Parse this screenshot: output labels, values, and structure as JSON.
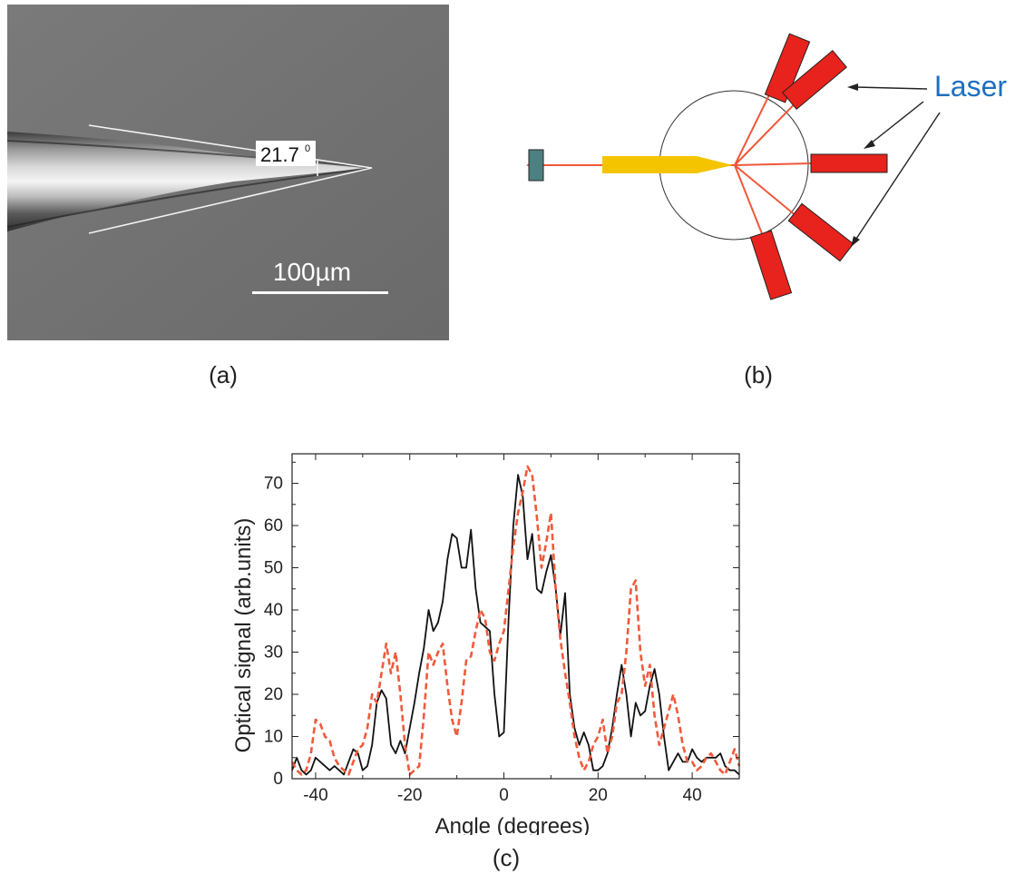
{
  "captions": {
    "a": "(a)",
    "b": "(b)",
    "c": "(c)"
  },
  "panel_a": {
    "angle_label": "21.7",
    "angle_unit": "0",
    "scale_bar_label": "100µm"
  },
  "panel_b": {
    "laser_label": "Laser",
    "colors": {
      "laser": "#e8221c",
      "tip": "#f5c400",
      "detector": "#4d8080",
      "beam": "#f0573a",
      "label": "#1f6fbf"
    }
  },
  "chart_data": {
    "type": "line",
    "xlabel": "Angle (degrees)",
    "ylabel": "Optical signal (arb.units)",
    "xlim": [
      -45,
      50
    ],
    "ylim": [
      0,
      77
    ],
    "xticks": [
      -40,
      -20,
      0,
      20,
      40
    ],
    "yticks": [
      0,
      10,
      20,
      30,
      40,
      50,
      60,
      70
    ],
    "series": [
      {
        "style": "solid",
        "color": "#111111",
        "points": [
          [
            -45,
            2
          ],
          [
            -44,
            5
          ],
          [
            -43,
            2
          ],
          [
            -42,
            1
          ],
          [
            -41,
            2
          ],
          [
            -40,
            5
          ],
          [
            -39,
            4
          ],
          [
            -38,
            3
          ],
          [
            -37,
            2
          ],
          [
            -36,
            3
          ],
          [
            -35,
            2
          ],
          [
            -34,
            1
          ],
          [
            -33,
            4
          ],
          [
            -32,
            7
          ],
          [
            -31,
            6
          ],
          [
            -30,
            2
          ],
          [
            -29,
            3
          ],
          [
            -28,
            8
          ],
          [
            -27,
            18
          ],
          [
            -26,
            21
          ],
          [
            -25,
            19
          ],
          [
            -24,
            8
          ],
          [
            -23,
            6
          ],
          [
            -22,
            9
          ],
          [
            -21,
            6
          ],
          [
            -20,
            12
          ],
          [
            -19,
            18
          ],
          [
            -18,
            25
          ],
          [
            -17,
            31
          ],
          [
            -16,
            40
          ],
          [
            -15,
            35
          ],
          [
            -14,
            37
          ],
          [
            -13,
            42
          ],
          [
            -12,
            52
          ],
          [
            -11,
            58
          ],
          [
            -10,
            57
          ],
          [
            -9,
            50
          ],
          [
            -8,
            50
          ],
          [
            -7,
            59
          ],
          [
            -6,
            45
          ],
          [
            -5,
            37
          ],
          [
            -4,
            36
          ],
          [
            -3,
            35
          ],
          [
            -2,
            20
          ],
          [
            -1,
            10
          ],
          [
            0,
            11
          ],
          [
            1,
            38
          ],
          [
            2,
            60
          ],
          [
            3,
            72
          ],
          [
            4,
            67
          ],
          [
            5,
            52
          ],
          [
            6,
            58
          ],
          [
            7,
            45
          ],
          [
            8,
            44
          ],
          [
            9,
            49
          ],
          [
            10,
            53
          ],
          [
            11,
            45
          ],
          [
            12,
            34
          ],
          [
            13,
            44
          ],
          [
            14,
            20
          ],
          [
            15,
            12
          ],
          [
            16,
            8
          ],
          [
            17,
            11
          ],
          [
            18,
            8
          ],
          [
            19,
            2
          ],
          [
            20,
            2
          ],
          [
            21,
            3
          ],
          [
            22,
            6
          ],
          [
            23,
            12
          ],
          [
            24,
            20
          ],
          [
            25,
            27
          ],
          [
            26,
            20
          ],
          [
            27,
            10
          ],
          [
            28,
            18
          ],
          [
            29,
            15
          ],
          [
            30,
            16
          ],
          [
            31,
            22
          ],
          [
            32,
            26
          ],
          [
            33,
            20
          ],
          [
            34,
            10
          ],
          [
            35,
            2
          ],
          [
            36,
            4
          ],
          [
            37,
            6
          ],
          [
            38,
            4
          ],
          [
            39,
            4
          ],
          [
            40,
            7
          ],
          [
            41,
            5
          ],
          [
            42,
            4
          ],
          [
            43,
            5
          ],
          [
            44,
            5
          ],
          [
            45,
            5
          ],
          [
            46,
            6
          ],
          [
            47,
            3
          ],
          [
            48,
            2
          ],
          [
            49,
            2
          ],
          [
            50,
            1
          ]
        ]
      },
      {
        "style": "dashed",
        "color": "#f05a3c",
        "points": [
          [
            -45,
            4
          ],
          [
            -44,
            2
          ],
          [
            -43,
            1
          ],
          [
            -42,
            2
          ],
          [
            -41,
            6
          ],
          [
            -40,
            14
          ],
          [
            -39,
            13
          ],
          [
            -38,
            10
          ],
          [
            -37,
            9
          ],
          [
            -36,
            5
          ],
          [
            -35,
            3
          ],
          [
            -34,
            2
          ],
          [
            -33,
            1
          ],
          [
            -32,
            4
          ],
          [
            -31,
            7
          ],
          [
            -30,
            8
          ],
          [
            -29,
            12
          ],
          [
            -28,
            20
          ],
          [
            -27,
            18
          ],
          [
            -26,
            25
          ],
          [
            -25,
            32
          ],
          [
            -24,
            25
          ],
          [
            -23,
            30
          ],
          [
            -22,
            20
          ],
          [
            -21,
            8
          ],
          [
            -20,
            1
          ],
          [
            -19,
            2
          ],
          [
            -18,
            3
          ],
          [
            -17,
            15
          ],
          [
            -16,
            30
          ],
          [
            -15,
            27
          ],
          [
            -14,
            30
          ],
          [
            -13,
            32
          ],
          [
            -12,
            22
          ],
          [
            -11,
            14
          ],
          [
            -10,
            10
          ],
          [
            -9,
            18
          ],
          [
            -8,
            28
          ],
          [
            -7,
            29
          ],
          [
            -6,
            35
          ],
          [
            -5,
            40
          ],
          [
            -4,
            38
          ],
          [
            -3,
            30
          ],
          [
            -2,
            28
          ],
          [
            -1,
            32
          ],
          [
            0,
            35
          ],
          [
            1,
            45
          ],
          [
            2,
            55
          ],
          [
            3,
            63
          ],
          [
            4,
            68
          ],
          [
            5,
            74
          ],
          [
            6,
            72
          ],
          [
            7,
            62
          ],
          [
            8,
            50
          ],
          [
            9,
            56
          ],
          [
            10,
            63
          ],
          [
            11,
            45
          ],
          [
            12,
            33
          ],
          [
            13,
            25
          ],
          [
            14,
            18
          ],
          [
            15,
            10
          ],
          [
            16,
            5
          ],
          [
            17,
            2
          ],
          [
            18,
            4
          ],
          [
            19,
            8
          ],
          [
            20,
            10
          ],
          [
            21,
            14
          ],
          [
            22,
            6
          ],
          [
            23,
            10
          ],
          [
            24,
            18
          ],
          [
            25,
            20
          ],
          [
            26,
            30
          ],
          [
            27,
            45
          ],
          [
            28,
            47
          ],
          [
            29,
            30
          ],
          [
            30,
            22
          ],
          [
            31,
            27
          ],
          [
            32,
            15
          ],
          [
            33,
            8
          ],
          [
            34,
            12
          ],
          [
            35,
            16
          ],
          [
            36,
            20
          ],
          [
            37,
            15
          ],
          [
            38,
            8
          ],
          [
            39,
            4
          ],
          [
            40,
            4
          ],
          [
            41,
            2
          ],
          [
            42,
            3
          ],
          [
            43,
            5
          ],
          [
            44,
            6
          ],
          [
            45,
            4
          ],
          [
            46,
            2
          ],
          [
            47,
            1
          ],
          [
            48,
            4
          ],
          [
            49,
            7
          ],
          [
            50,
            3
          ]
        ]
      }
    ]
  }
}
